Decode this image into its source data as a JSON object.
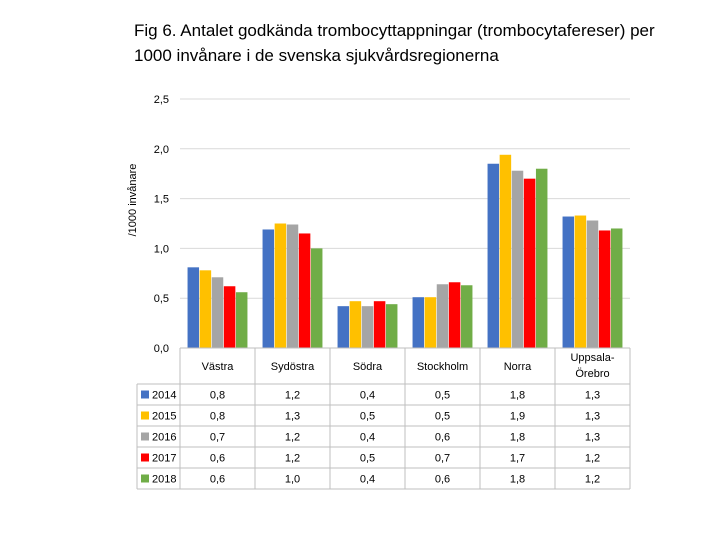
{
  "title_line1": "Fig 6. Antalet godkända trombocyttappningar (trombocytafereser) per",
  "title_line2": "1000 invånare i de svenska sjukvårdsregionerna",
  "chart_data": {
    "type": "bar",
    "ylabel": "/1000 invånare",
    "ylim": [
      0,
      2.5
    ],
    "yticks": [
      "0,0",
      "0,5",
      "1,0",
      "1,5",
      "2,0",
      "2,5"
    ],
    "grid": true,
    "legend": "data-table-left",
    "categories": [
      [
        "Västra"
      ],
      [
        "Sydöstra"
      ],
      [
        "Södra"
      ],
      [
        "Stockholm"
      ],
      [
        "Norra"
      ],
      [
        "Uppsala-",
        "Örebro"
      ]
    ],
    "series": [
      {
        "name": "2014",
        "color": "#4472C4",
        "values": [
          0.81,
          1.19,
          0.42,
          0.51,
          1.85,
          1.32
        ],
        "labels": [
          "0,8",
          "1,2",
          "0,4",
          "0,5",
          "1,8",
          "1,3"
        ]
      },
      {
        "name": "2015",
        "color": "#FFC000",
        "values": [
          0.78,
          1.25,
          0.47,
          0.51,
          1.94,
          1.33
        ],
        "labels": [
          "0,8",
          "1,3",
          "0,5",
          "0,5",
          "1,9",
          "1,3"
        ]
      },
      {
        "name": "2016",
        "color": "#A5A5A5",
        "values": [
          0.71,
          1.24,
          0.42,
          0.64,
          1.78,
          1.28
        ],
        "labels": [
          "0,7",
          "1,2",
          "0,4",
          "0,6",
          "1,8",
          "1,3"
        ]
      },
      {
        "name": "2017",
        "color": "#FF0000",
        "values": [
          0.62,
          1.15,
          0.47,
          0.66,
          1.7,
          1.18
        ],
        "labels": [
          "0,6",
          "1,2",
          "0,5",
          "0,7",
          "1,7",
          "1,2"
        ]
      },
      {
        "name": "2018",
        "color": "#70AD47",
        "values": [
          0.56,
          1.0,
          0.44,
          0.63,
          1.8,
          1.2
        ],
        "labels": [
          "0,6",
          "1,0",
          "0,4",
          "0,6",
          "1,8",
          "1,2"
        ]
      }
    ]
  }
}
